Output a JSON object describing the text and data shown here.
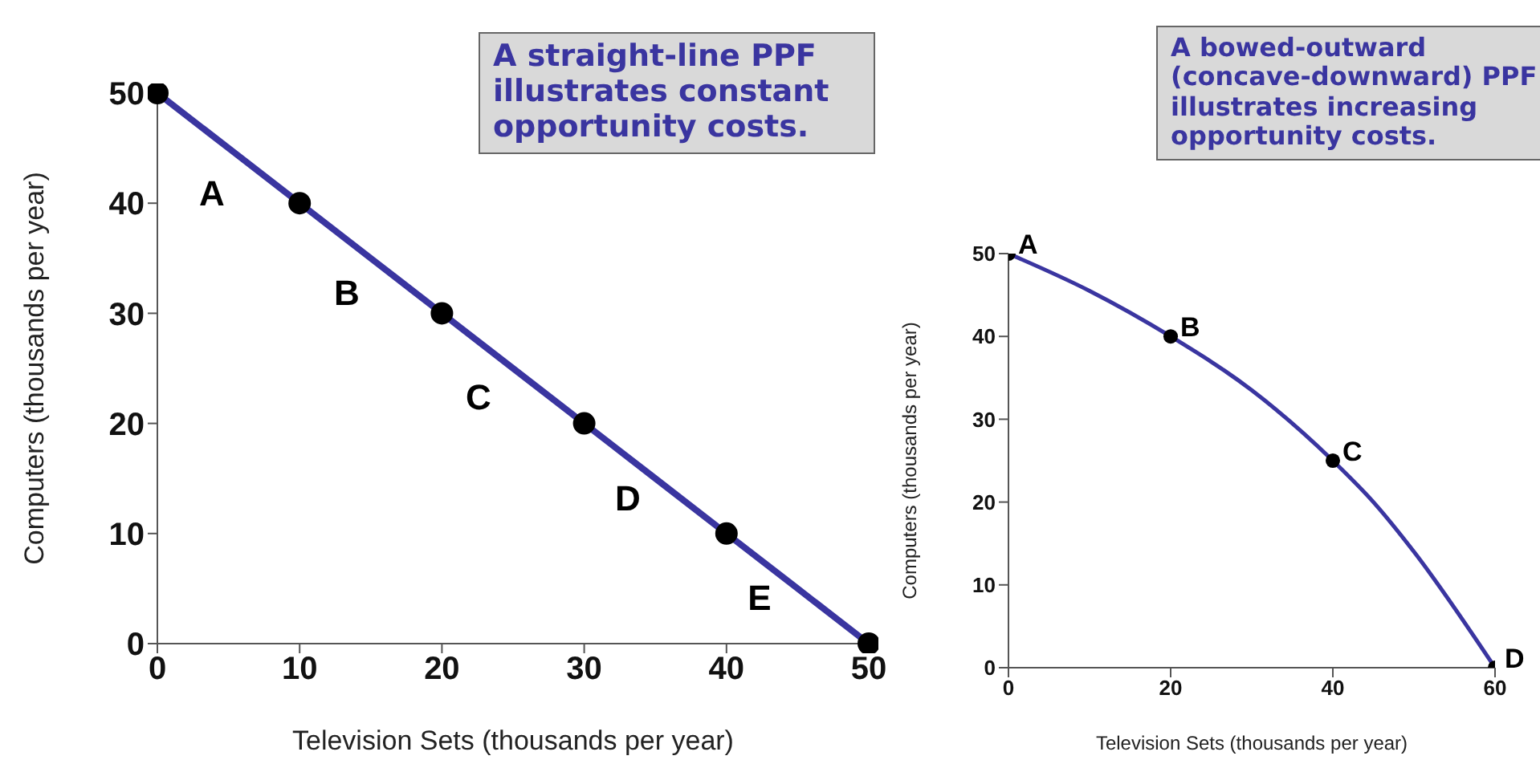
{
  "chart_data": [
    {
      "type": "line",
      "xlabel": "Television Sets (thousands per year)",
      "ylabel": "Computers (thousands per year)",
      "x": [
        0,
        10,
        20,
        30,
        40,
        50
      ],
      "xlim": [
        0,
        50
      ],
      "xticks": [
        0,
        10,
        20,
        30,
        40,
        50
      ],
      "ylim": [
        0,
        50
      ],
      "yticks": [
        0,
        10,
        20,
        30,
        40,
        50
      ],
      "marker": "circle",
      "series": [
        {
          "color": "#3a35a0",
          "values": [
            50,
            40,
            30,
            20,
            10,
            0
          ]
        }
      ],
      "annotations": [
        "A straight-line PPF illustrates constant opportunity costs.",
        "A",
        "B",
        "C",
        "D",
        "E"
      ]
    },
    {
      "type": "line",
      "xlabel": "Television Sets (thousands per year)",
      "ylabel": "Computers (thousands per year)",
      "xlim": [
        0,
        60
      ],
      "xticks": [
        0,
        20,
        40,
        60
      ],
      "ylim": [
        0,
        50
      ],
      "yticks": [
        0,
        10,
        20,
        30,
        40,
        50
      ],
      "series": [
        {
          "color": "#3a35a0",
          "marker": "none",
          "x": [
            0,
            10,
            20,
            30,
            40,
            45,
            50,
            60
          ],
          "values": [
            50,
            45.5,
            40,
            33.5,
            25,
            20,
            14,
            0
          ]
        },
        {
          "type": "scatter",
          "color": "#000000",
          "marker": "circle",
          "x": [
            0,
            20,
            40,
            60
          ],
          "values": [
            50,
            40,
            25,
            0
          ]
        }
      ],
      "annotations": [
        "A bowed-outward (concave-downward) PPF illustrates increasing opportunity costs.",
        {
          "text": "A",
          "x": 0,
          "y": 50
        },
        {
          "text": "B",
          "x": 20,
          "y": 40
        },
        {
          "text": "C",
          "x": 40,
          "y": 25
        },
        {
          "text": "D",
          "x": 60,
          "y": 0
        }
      ]
    }
  ]
}
